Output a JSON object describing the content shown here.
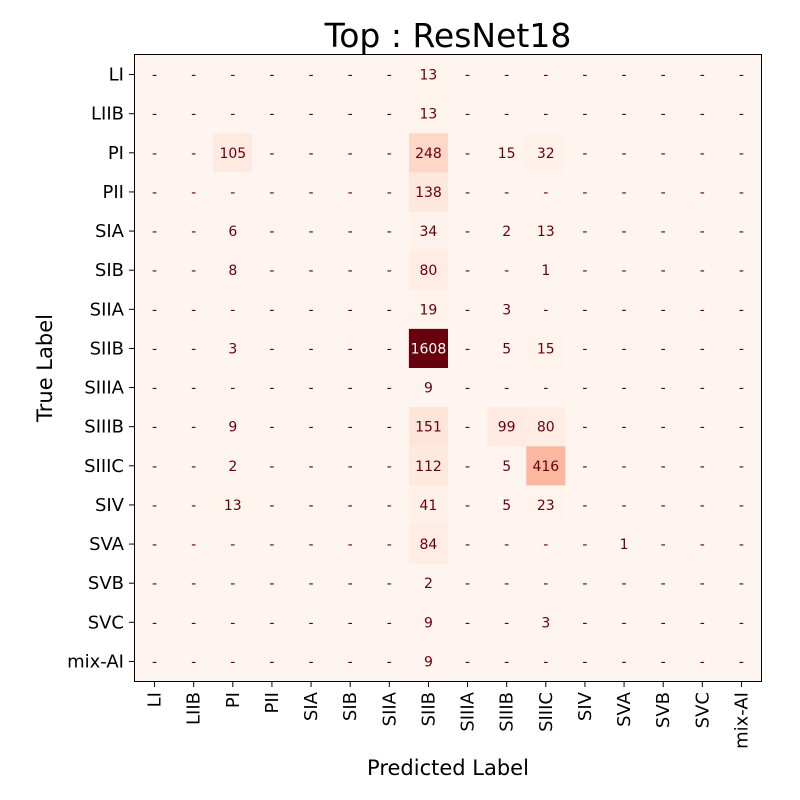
{
  "chart_data": {
    "type": "heatmap",
    "title": "Top : ResNet18",
    "xlabel": "Predicted Label",
    "ylabel": "True Label",
    "x_categories": [
      "LI",
      "LIIB",
      "PI",
      "PII",
      "SIA",
      "SIB",
      "SIIA",
      "SIIB",
      "SIIIA",
      "SIIIB",
      "SIIIC",
      "SIV",
      "SVA",
      "SVB",
      "SVC",
      "mix-AI"
    ],
    "y_categories": [
      "LI",
      "LIIB",
      "PI",
      "PII",
      "SIA",
      "SIB",
      "SIIA",
      "SIIB",
      "SIIIA",
      "SIIIB",
      "SIIIC",
      "SIV",
      "SVA",
      "SVB",
      "SVC",
      "mix-AI"
    ],
    "values": [
      [
        0,
        0,
        0,
        0,
        0,
        0,
        0,
        13,
        0,
        0,
        0,
        0,
        0,
        0,
        0,
        0
      ],
      [
        0,
        0,
        0,
        0,
        0,
        0,
        0,
        13,
        0,
        0,
        0,
        0,
        0,
        0,
        0,
        0
      ],
      [
        0,
        0,
        105,
        0,
        0,
        0,
        0,
        248,
        0,
        15,
        32,
        0,
        0,
        0,
        0,
        0
      ],
      [
        0,
        0,
        0,
        0,
        0,
        0,
        0,
        138,
        0,
        0,
        0,
        0,
        0,
        0,
        0,
        0
      ],
      [
        0,
        0,
        6,
        0,
        0,
        0,
        0,
        34,
        0,
        2,
        13,
        0,
        0,
        0,
        0,
        0
      ],
      [
        0,
        0,
        8,
        0,
        0,
        0,
        0,
        80,
        0,
        0,
        1,
        0,
        0,
        0,
        0,
        0
      ],
      [
        0,
        0,
        0,
        0,
        0,
        0,
        0,
        19,
        0,
        3,
        0,
        0,
        0,
        0,
        0,
        0
      ],
      [
        0,
        0,
        3,
        0,
        0,
        0,
        0,
        1608,
        0,
        5,
        15,
        0,
        0,
        0,
        0,
        0
      ],
      [
        0,
        0,
        0,
        0,
        0,
        0,
        0,
        9,
        0,
        0,
        0,
        0,
        0,
        0,
        0,
        0
      ],
      [
        0,
        0,
        9,
        0,
        0,
        0,
        0,
        151,
        0,
        99,
        80,
        0,
        0,
        0,
        0,
        0
      ],
      [
        0,
        0,
        2,
        0,
        0,
        0,
        0,
        112,
        0,
        5,
        416,
        0,
        0,
        0,
        0,
        0
      ],
      [
        0,
        0,
        13,
        0,
        0,
        0,
        0,
        41,
        0,
        5,
        23,
        0,
        0,
        0,
        0,
        0
      ],
      [
        0,
        0,
        0,
        0,
        0,
        0,
        0,
        84,
        0,
        0,
        0,
        0,
        1,
        0,
        0,
        0
      ],
      [
        0,
        0,
        0,
        0,
        0,
        0,
        0,
        2,
        0,
        0,
        0,
        0,
        0,
        0,
        0,
        0
      ],
      [
        0,
        0,
        0,
        0,
        0,
        0,
        0,
        9,
        0,
        0,
        3,
        0,
        0,
        0,
        0,
        0
      ],
      [
        0,
        0,
        0,
        0,
        0,
        0,
        0,
        9,
        0,
        0,
        0,
        0,
        0,
        0,
        0,
        0
      ]
    ],
    "zero_label": "-",
    "colormap": "Reds",
    "color_low": "#fff5f0",
    "color_high": "#67000d",
    "text_dark": "#67000d",
    "text_light": "#ffffff",
    "grid": false,
    "legend": "none"
  }
}
